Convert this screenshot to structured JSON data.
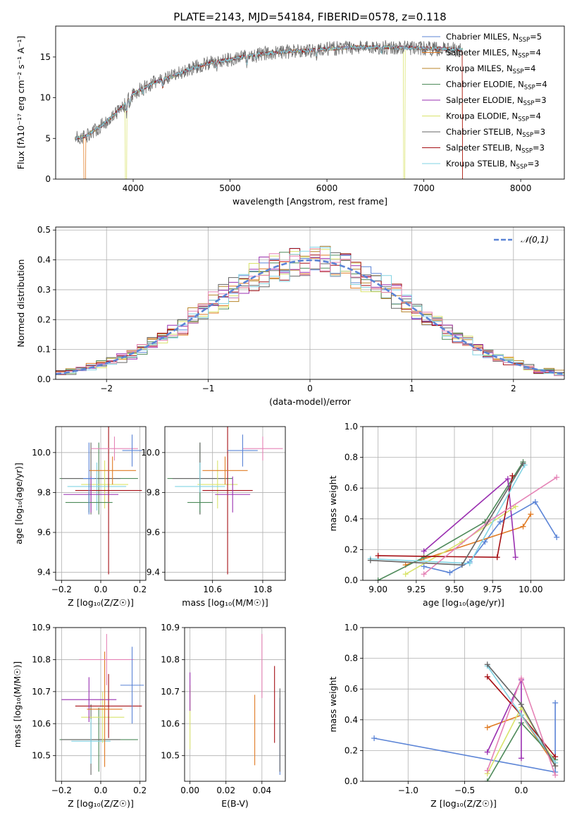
{
  "figure_title": "PLATE=2143, MJD=54184, FIBERID=0578, z=0.118",
  "colors": {
    "blue": "#5b84d6",
    "orange": "#e07b24",
    "goldbrown": "#b8862a",
    "green": "#4e8a5a",
    "purple": "#9a2fb0",
    "yellow": "#d9e36b",
    "gray": "#666666",
    "darkred": "#a50f15",
    "lightblue": "#82d3e3",
    "pink": "#e583b6",
    "olive": "#8a8a2a"
  },
  "chart_data": [
    {
      "type": "line",
      "xlabel": "wavelength [Angstrom, rest frame]",
      "ylabel": "Flux [fλ10⁻¹⁷ erg cm⁻² s⁻¹ A⁻¹]",
      "xlim": [
        3200,
        8450
      ],
      "ylim": [
        0,
        18.8
      ],
      "xticks": [
        4000,
        5000,
        6000,
        7000,
        8000
      ],
      "yticks": [
        0,
        5,
        10,
        15
      ],
      "grid": false,
      "legend_position": "right",
      "spectrum_knots": {
        "x": [
          3400,
          3500,
          3700,
          3900,
          4000,
          4200,
          4400,
          4600,
          4800,
          5000,
          5200,
          5500,
          5800,
          6000,
          6300,
          6600,
          6900,
          7200,
          7400
        ],
        "y": [
          5.0,
          5.2,
          6.8,
          9.0,
          10.5,
          11.8,
          12.6,
          13.6,
          14.3,
          14.7,
          15.2,
          15.6,
          15.8,
          16.0,
          16.2,
          16.2,
          16.1,
          16.0,
          15.9
        ]
      },
      "series": [
        {
          "name": "Chabrier MILES, N$_{SSP}$=5",
          "label_main": "Chabrier MILES, N",
          "label_sub": "SSP",
          "label_tail": "=5",
          "color": "#5b84d6"
        },
        {
          "name": "Salpeter MILES, N$_{SSP}$=4",
          "label_main": "Salpeter MILES, N",
          "label_sub": "SSP",
          "label_tail": "=4",
          "color": "#e07b24"
        },
        {
          "name": "Kroupa MILES, N$_{SSP}$=4",
          "label_main": "Kroupa MILES, N",
          "label_sub": "SSP",
          "label_tail": "=4",
          "color": "#b8862a"
        },
        {
          "name": "Chabrier ELODIE, N$_{SSP}$=4",
          "label_main": "Chabrier ELODIE, N",
          "label_sub": "SSP",
          "label_tail": "=4",
          "color": "#4e8a5a"
        },
        {
          "name": "Salpeter ELODIE, N$_{SSP}$=3",
          "label_main": "Salpeter ELODIE, N",
          "label_sub": "SSP",
          "label_tail": "=3",
          "color": "#9a2fb0"
        },
        {
          "name": "Kroupa ELODIE, N$_{SSP}$=4",
          "label_main": "Kroupa ELODIE, N",
          "label_sub": "SSP",
          "label_tail": "=4",
          "color": "#d9e36b"
        },
        {
          "name": "Chabrier STELIB, N$_{SSP}$=3",
          "label_main": "Chabrier STELIB, N",
          "label_sub": "SSP",
          "label_tail": "=3",
          "color": "#666666"
        },
        {
          "name": "Salpeter STELIB, N$_{SSP}$=3",
          "label_main": "Salpeter STELIB, N",
          "label_sub": "SSP",
          "label_tail": "=3",
          "color": "#a50f15"
        },
        {
          "name": "Kroupa STELIB, N$_{SSP}$=3",
          "label_main": "Kroupa STELIB, N",
          "label_sub": "SSP",
          "label_tail": "=3",
          "color": "#82d3e3"
        }
      ]
    },
    {
      "type": "line",
      "xlabel": "(data-model)/error",
      "ylabel": "Normed distribution",
      "xlim": [
        -2.5,
        2.5
      ],
      "ylim": [
        0,
        0.51
      ],
      "xticks": [
        -2,
        -1,
        0,
        1,
        2
      ],
      "yticks": [
        0.0,
        0.1,
        0.2,
        0.3,
        0.4,
        0.5
      ],
      "grid": true,
      "legend_position": "top-right",
      "reference": {
        "name": "𝒩(0,1)",
        "color": "#5b84d6",
        "mean": 0,
        "sigma": 1
      },
      "bin_width": 0.1,
      "histogram_colors": [
        "#5b84d6",
        "#e07b24",
        "#b8862a",
        "#4e8a5a",
        "#9a2fb0",
        "#d9e36b",
        "#666666",
        "#a50f15",
        "#82d3e3",
        "#e583b6"
      ]
    },
    {
      "type": "scatter",
      "xlabel": "Z [log₁₀(Z/Z☉)]",
      "ylabel": "age  [log₁₀(age/yr)]",
      "xlim": [
        -0.23,
        0.23
      ],
      "ylim": [
        9.36,
        10.13
      ],
      "xticks": [
        -0.2,
        0.0,
        0.2
      ],
      "yticks": [
        9.4,
        9.6,
        9.8,
        10.0
      ],
      "grid": true,
      "points": [
        {
          "x": -0.01,
          "y": 9.87,
          "xerr": 0.2,
          "yerr": 0.18,
          "color": "#4e8a5a"
        },
        {
          "x": -0.05,
          "y": 9.87,
          "xerr": 0.15,
          "yerr": 0.18,
          "color": "#666666"
        },
        {
          "x": 0.02,
          "y": 9.84,
          "xerr": 0.12,
          "yerr": 0.12,
          "color": "#d9e36b"
        },
        {
          "x": -0.02,
          "y": 9.83,
          "xerr": 0.15,
          "yerr": 0.12,
          "color": "#82d3e3"
        },
        {
          "x": 0.04,
          "y": 9.81,
          "xerr": 0.17,
          "yerr": 0.42,
          "color": "#a50f15"
        },
        {
          "x": -0.05,
          "y": 9.79,
          "xerr": 0.14,
          "yerr": 0.09,
          "color": "#9a2fb0"
        },
        {
          "x": -0.06,
          "y": 9.75,
          "xerr": 0.12,
          "yerr": 0.05,
          "color": "#4e8a5a"
        },
        {
          "x": 0.06,
          "y": 9.91,
          "xerr": 0.12,
          "yerr": 0.07,
          "color": "#e07b24"
        },
        {
          "x": 0.07,
          "y": 10.02,
          "xerr": 0.12,
          "yerr": 0.06,
          "color": "#e583b6"
        },
        {
          "x": 0.16,
          "y": 10.01,
          "xerr": 0.05,
          "yerr": 0.08,
          "color": "#5b84d6"
        },
        {
          "x": -0.06,
          "y": 9.87,
          "xerr": 0.03,
          "yerr": 0.18,
          "color": "#5b84d6"
        }
      ]
    },
    {
      "type": "scatter",
      "xlabel": "mass [log₁₀(M/M☉)]",
      "ylabel": "",
      "xlim": [
        10.41,
        10.89
      ],
      "ylim": [
        9.36,
        10.13
      ],
      "xticks": [
        10.6,
        10.8
      ],
      "yticks": [
        9.4,
        9.6,
        9.8,
        10.0
      ],
      "grid": true,
      "points": [
        {
          "x": 10.55,
          "y": 9.87,
          "xerr": 0.13,
          "yerr": 0.18,
          "color": "#4e8a5a"
        },
        {
          "x": 10.55,
          "y": 9.87,
          "xerr": 0.11,
          "yerr": 0.18,
          "color": "#666666"
        },
        {
          "x": 10.62,
          "y": 9.84,
          "xerr": 0.08,
          "yerr": 0.12,
          "color": "#d9e36b"
        },
        {
          "x": 10.55,
          "y": 9.83,
          "xerr": 0.1,
          "yerr": 0.12,
          "color": "#82d3e3"
        },
        {
          "x": 10.66,
          "y": 9.81,
          "xerr": 0.1,
          "yerr": 0.42,
          "color": "#a50f15"
        },
        {
          "x": 10.68,
          "y": 9.79,
          "xerr": 0.07,
          "yerr": 0.09,
          "color": "#9a2fb0"
        },
        {
          "x": 10.55,
          "y": 9.75,
          "xerr": 0.05,
          "yerr": 0.05,
          "color": "#4e8a5a"
        },
        {
          "x": 10.65,
          "y": 9.91,
          "xerr": 0.09,
          "yerr": 0.07,
          "color": "#e07b24"
        },
        {
          "x": 10.8,
          "y": 10.02,
          "xerr": 0.08,
          "yerr": 0.06,
          "color": "#e583b6"
        },
        {
          "x": 10.72,
          "y": 10.01,
          "xerr": 0.06,
          "yerr": 0.08,
          "color": "#5b84d6"
        }
      ]
    },
    {
      "type": "line",
      "xlabel": "age  [log₁₀(age/yr)]",
      "ylabel": "mass weight",
      "xlim": [
        8.9,
        10.22
      ],
      "ylim": [
        0,
        1
      ],
      "xticks": [
        9.0,
        9.25,
        9.5,
        9.75,
        10.0
      ],
      "yticks": [
        0.0,
        0.2,
        0.4,
        0.6,
        0.8,
        1.0
      ],
      "grid": true,
      "series": [
        {
          "color": "#5b84d6",
          "x": [
            9.3,
            9.47,
            9.6,
            9.7,
            9.8,
            10.03,
            10.17
          ],
          "y": [
            0.09,
            0.05,
            0.12,
            0.25,
            0.38,
            0.51,
            0.28
          ]
        },
        {
          "color": "#e07b24",
          "x": [
            9.18,
            9.95,
            10.0
          ],
          "y": [
            0.1,
            0.35,
            0.43
          ]
        },
        {
          "color": "#4e8a5a",
          "x": [
            9.0,
            9.3,
            9.7,
            9.95
          ],
          "y": [
            0.0,
            0.15,
            0.38,
            0.77
          ]
        },
        {
          "color": "#9a2fb0",
          "x": [
            9.3,
            9.85,
            9.9
          ],
          "y": [
            0.19,
            0.66,
            0.15
          ]
        },
        {
          "color": "#d9e36b",
          "x": [
            9.18,
            9.55,
            9.9
          ],
          "y": [
            0.04,
            0.25,
            0.48
          ]
        },
        {
          "color": "#a50f15",
          "x": [
            9.0,
            9.78,
            9.88
          ],
          "y": [
            0.16,
            0.15,
            0.68
          ]
        },
        {
          "color": "#82d3e3",
          "x": [
            8.95,
            9.6,
            9.96
          ],
          "y": [
            0.14,
            0.11,
            0.75
          ]
        },
        {
          "color": "#e583b6",
          "x": [
            9.3,
            9.72,
            10.17
          ],
          "y": [
            0.04,
            0.38,
            0.67
          ]
        },
        {
          "color": "#666666",
          "x": [
            8.95,
            9.55,
            9.95
          ],
          "y": [
            0.13,
            0.1,
            0.76
          ]
        }
      ]
    },
    {
      "type": "scatter",
      "xlabel": "Z [log₁₀(Z/Z☉)]",
      "ylabel": "mass [log₁₀(M/M☉)]",
      "xlim": [
        -0.23,
        0.23
      ],
      "ylim": [
        10.42,
        10.9
      ],
      "xticks": [
        -0.2,
        0.0,
        0.2
      ],
      "yticks": [
        10.5,
        10.6,
        10.7,
        10.8,
        10.9
      ],
      "grid": true,
      "points": [
        {
          "x": -0.01,
          "y": 10.55,
          "xerr": 0.2,
          "yerr": 0.1,
          "color": "#4e8a5a"
        },
        {
          "x": -0.05,
          "y": 10.55,
          "xerr": 0.15,
          "yerr": 0.11,
          "color": "#666666"
        },
        {
          "x": -0.05,
          "y": 10.545,
          "xerr": 0.1,
          "yerr": 0.07,
          "color": "#82d3e3"
        },
        {
          "x": 0.01,
          "y": 10.62,
          "xerr": 0.11,
          "yerr": 0.08,
          "color": "#d9e36b"
        },
        {
          "x": 0.04,
          "y": 10.655,
          "xerr": 0.17,
          "yerr": 0.1,
          "color": "#a50f15"
        },
        {
          "x": -0.06,
          "y": 10.675,
          "xerr": 0.14,
          "yerr": 0.07,
          "color": "#9a2fb0"
        },
        {
          "x": 0.02,
          "y": 10.645,
          "xerr": 0.09,
          "yerr": 0.18,
          "color": "#e07b24"
        },
        {
          "x": 0.03,
          "y": 10.8,
          "xerr": 0.14,
          "yerr": 0.08,
          "color": "#e583b6"
        },
        {
          "x": 0.16,
          "y": 10.72,
          "xerr": 0.06,
          "yerr": 0.12,
          "color": "#5b84d6"
        }
      ]
    },
    {
      "type": "scatter",
      "xlabel": "E(B-V)",
      "ylabel": "",
      "xlim": [
        -0.003,
        0.053
      ],
      "ylim": [
        10.42,
        10.9
      ],
      "xticks": [
        0.0,
        0.02,
        0.04
      ],
      "yticks": [
        10.5,
        10.6,
        10.7,
        10.8,
        10.9
      ],
      "grid": true,
      "points": [
        {
          "x": 0.0,
          "y": 10.62,
          "yerr": 0.1,
          "color": "#d9e36b"
        },
        {
          "x": 0.0,
          "y": 10.7,
          "yerr": 0.06,
          "color": "#9a2fb0"
        },
        {
          "x": 0.036,
          "y": 10.58,
          "yerr": 0.11,
          "color": "#e07b24"
        },
        {
          "x": 0.04,
          "y": 10.78,
          "yerr": 0.1,
          "color": "#e583b6"
        },
        {
          "x": 0.047,
          "y": 10.66,
          "yerr": 0.12,
          "color": "#a50f15"
        },
        {
          "x": 0.05,
          "y": 10.56,
          "yerr": 0.12,
          "color": "#5b84d6"
        },
        {
          "x": 0.05,
          "y": 10.58,
          "yerr": 0.13,
          "color": "#666666"
        }
      ]
    },
    {
      "type": "line",
      "xlabel": "Z [log₁₀(Z/Z☉)]",
      "ylabel": "mass weight",
      "xlim": [
        -1.4,
        0.38
      ],
      "ylim": [
        0,
        1
      ],
      "xticks": [
        -1.0,
        -0.5,
        0.0
      ],
      "yticks": [
        0.0,
        0.2,
        0.4,
        0.6,
        0.8,
        1.0
      ],
      "grid": true,
      "series": [
        {
          "color": "#5b84d6",
          "x": [
            -1.3,
            0.3,
            0.3
          ],
          "y": [
            0.28,
            0.06,
            0.51
          ]
        },
        {
          "color": "#e07b24",
          "x": [
            -0.3,
            0.0,
            0.3
          ],
          "y": [
            0.35,
            0.43,
            0.1
          ]
        },
        {
          "color": "#4e8a5a",
          "x": [
            -0.3,
            0.0,
            0.3
          ],
          "y": [
            0.0,
            0.38,
            0.14
          ]
        },
        {
          "color": "#9a2fb0",
          "x": [
            -0.3,
            0.0,
            0.0
          ],
          "y": [
            0.19,
            0.66,
            0.15
          ]
        },
        {
          "color": "#d9e36b",
          "x": [
            -0.3,
            0.0,
            0.3
          ],
          "y": [
            0.05,
            0.48,
            0.12
          ]
        },
        {
          "color": "#a50f15",
          "x": [
            -0.3,
            0.0,
            0.3
          ],
          "y": [
            0.68,
            0.43,
            0.16
          ]
        },
        {
          "color": "#82d3e3",
          "x": [
            -0.3,
            0.0,
            0.3
          ],
          "y": [
            0.75,
            0.43,
            0.12
          ]
        },
        {
          "color": "#e583b6",
          "x": [
            -0.3,
            0.0,
            0.3
          ],
          "y": [
            0.07,
            0.67,
            0.04
          ]
        },
        {
          "color": "#666666",
          "x": [
            -0.3,
            0.0,
            0.3
          ],
          "y": [
            0.76,
            0.5,
            0.1
          ]
        }
      ]
    }
  ]
}
